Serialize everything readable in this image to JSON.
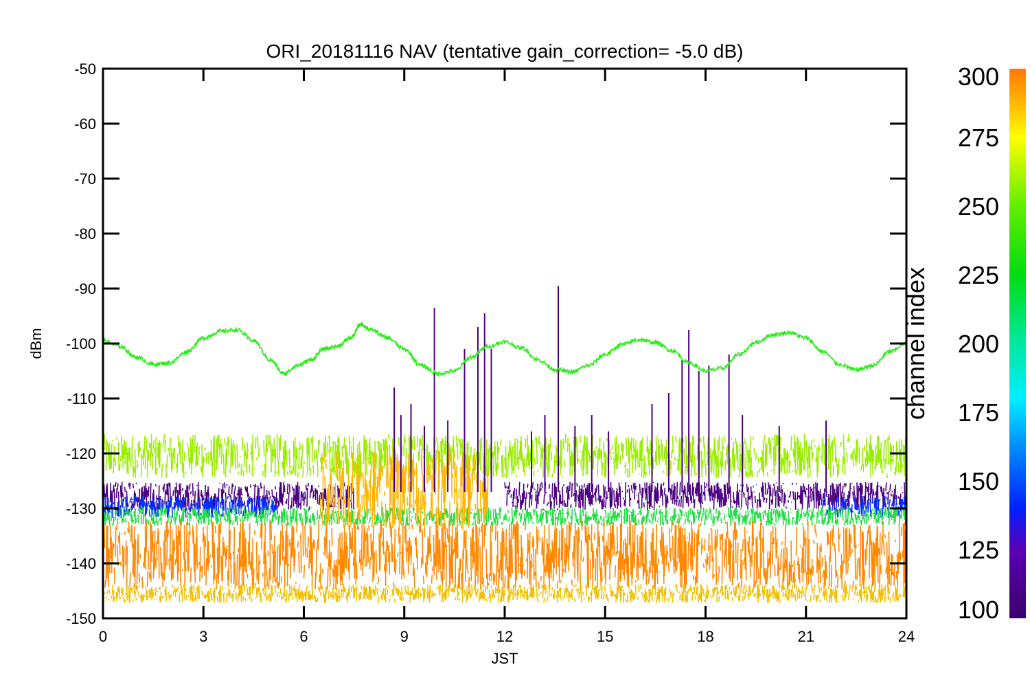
{
  "chart_data": {
    "type": "line",
    "title": "ORI_20181116 NAV (tentative gain_correction= -5.0 dB)",
    "xlabel": "JST",
    "ylabel": "dBm",
    "xlim": [
      0,
      24
    ],
    "ylim": [
      -150,
      -50
    ],
    "xticks": [
      0,
      3,
      6,
      9,
      12,
      15,
      18,
      21,
      24
    ],
    "yticks": [
      -50,
      -60,
      -70,
      -80,
      -90,
      -100,
      -110,
      -120,
      -130,
      -140,
      -150
    ],
    "grid": false,
    "colorbar": {
      "label": "channel index",
      "range": [
        100,
        300
      ],
      "ticks": [
        300,
        275,
        250,
        225,
        200,
        175,
        150,
        125,
        100
      ],
      "colormap_stops": [
        {
          "value": 100,
          "color": "#3b006a"
        },
        {
          "value": 125,
          "color": "#5a00b5"
        },
        {
          "value": 140,
          "color": "#0020ff"
        },
        {
          "value": 160,
          "color": "#0080ff"
        },
        {
          "value": 180,
          "color": "#00eeff"
        },
        {
          "value": 200,
          "color": "#00e8a0"
        },
        {
          "value": 225,
          "color": "#00dd10"
        },
        {
          "value": 250,
          "color": "#60ee00"
        },
        {
          "value": 275,
          "color": "#ffff00"
        },
        {
          "value": 290,
          "color": "#ffaa00"
        },
        {
          "value": 300,
          "color": "#ff7800"
        }
      ]
    },
    "series": [
      {
        "color": "#22ee11",
        "style": "line",
        "x": [
          0,
          0.5,
          1.0,
          1.5,
          2.0,
          2.5,
          3.0,
          3.5,
          4.0,
          4.5,
          5.0,
          5.4,
          5.8,
          6.2,
          6.6,
          7.0,
          7.4,
          7.7,
          8.0,
          8.5,
          9.0,
          9.5,
          10.0,
          10.5,
          11.0,
          11.5,
          12.0,
          12.5,
          13.0,
          13.5,
          14.0,
          14.5,
          15.0,
          15.5,
          16.0,
          16.5,
          17.0,
          17.5,
          18.0,
          18.5,
          19.0,
          19.5,
          20.0,
          20.5,
          21.0,
          21.5,
          22.0,
          22.5,
          23.0,
          23.5,
          24.0
        ],
        "y": [
          -99.5,
          -100.5,
          -102.5,
          -103.8,
          -103.5,
          -101.5,
          -99.0,
          -97.8,
          -97.5,
          -99.5,
          -103.0,
          -105.5,
          -104.0,
          -103.0,
          -101.0,
          -100.5,
          -99.0,
          -96.5,
          -97.5,
          -99.0,
          -101.0,
          -104.0,
          -105.5,
          -105.0,
          -102.5,
          -100.5,
          -99.7,
          -100.8,
          -103.0,
          -104.7,
          -105.2,
          -104.0,
          -102.0,
          -100.2,
          -99.3,
          -99.8,
          -101.3,
          -103.5,
          -105.0,
          -104.5,
          -102.0,
          -99.8,
          -98.4,
          -98.0,
          -99.0,
          -101.5,
          -103.8,
          -104.8,
          -104.0,
          -101.5,
          -100.0
        ]
      },
      {
        "color": "#99ee00",
        "style": "noise-band",
        "x": [
          0,
          24
        ],
        "low": -124,
        "high": -117
      },
      {
        "color": "#4a0080",
        "style": "noise-band",
        "x": [
          0,
          7.5
        ],
        "low": -130,
        "high": -125.5
      },
      {
        "color": "#4a0080",
        "style": "noise-band",
        "x": [
          12,
          24
        ],
        "low": -130,
        "high": -125.5
      },
      {
        "color": "#0030ff",
        "style": "noise-band",
        "x": [
          0,
          5.2
        ],
        "low": -131.5,
        "high": -128
      },
      {
        "color": "#0030ff",
        "style": "noise-band",
        "x": [
          21.5,
          24
        ],
        "low": -131.5,
        "high": -128
      },
      {
        "color": "#22dd44",
        "style": "noise-band",
        "x": [
          0,
          24
        ],
        "low": -133,
        "high": -130
      },
      {
        "color": "#ffb400",
        "style": "noise-band",
        "x": [
          6.5,
          11.5
        ],
        "low": -133,
        "high": -120
      },
      {
        "color": "#ff8800",
        "style": "noise-band",
        "x": [
          0,
          24
        ],
        "low": -144,
        "high": -133
      },
      {
        "color": "#f0c000",
        "style": "noise-band",
        "x": [
          0,
          24
        ],
        "low": -147,
        "high": -144
      },
      {
        "color": "#4a0080",
        "style": "spikes",
        "x": [
          8.7,
          8.9,
          9.2,
          9.6,
          9.9,
          10.3,
          10.8,
          11.2,
          11.4,
          11.6,
          12.8,
          13.2,
          13.6,
          14.1,
          14.6,
          15.1,
          16.4,
          16.9,
          17.3,
          17.5,
          17.8,
          18.1,
          18.7,
          19.1,
          20.2,
          21.6
        ],
        "y": [
          -108,
          -113,
          -111,
          -115,
          -93.5,
          -114,
          -101,
          -97,
          -94.5,
          -101,
          -116,
          -113,
          -89.5,
          -115,
          -113,
          -116,
          -111,
          -109,
          -103,
          -97.5,
          -105,
          -104,
          -102,
          -113,
          -115,
          -114
        ]
      }
    ]
  }
}
